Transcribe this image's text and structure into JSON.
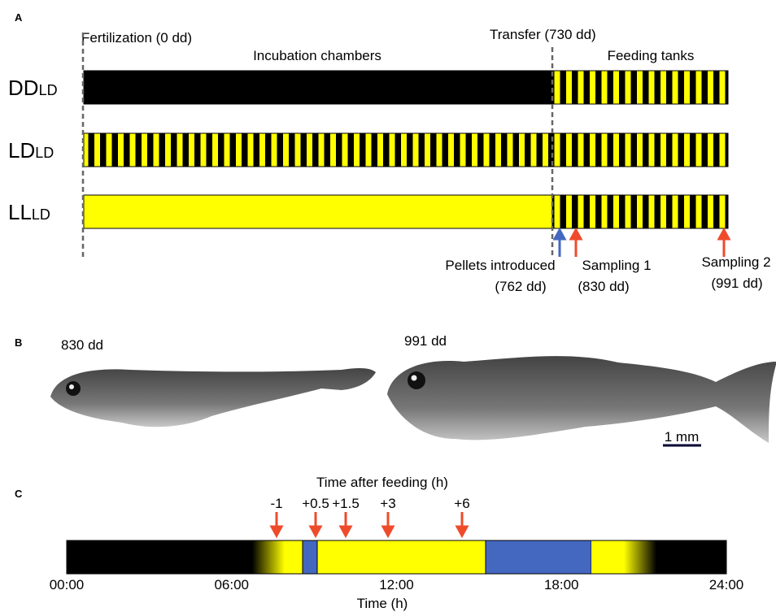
{
  "panel_a": {
    "label": "A",
    "fertilization": "Fertilization (0 dd)",
    "transfer": "Transfer (730 dd)",
    "incubation": "Incubation chambers",
    "feeding": "Feeding tanks",
    "rows": [
      {
        "main": "DD",
        "sub": "LD"
      },
      {
        "main": "LD",
        "sub": "LD"
      },
      {
        "main": "LL",
        "sub": "LD"
      }
    ],
    "events": [
      {
        "lines": [
          "Pellets introduced",
          "(762 dd)"
        ]
      },
      {
        "lines": [
          "Sampling 1",
          "(830 dd)"
        ]
      },
      {
        "lines": [
          "Sampling 2",
          "(991 dd)"
        ]
      }
    ]
  },
  "panel_b": {
    "label": "B",
    "fish": [
      "830 dd",
      "991 dd"
    ],
    "scale": "1 mm"
  },
  "panel_c": {
    "label": "C",
    "title": "Time after feeding (h)",
    "arrows": [
      "-1",
      "+0.5",
      "+1.5",
      "+3",
      "+6"
    ],
    "ticks": [
      "00:00",
      "06:00",
      "12:00",
      "18:00",
      "24:00"
    ],
    "axis_title": "Time (h)"
  }
}
